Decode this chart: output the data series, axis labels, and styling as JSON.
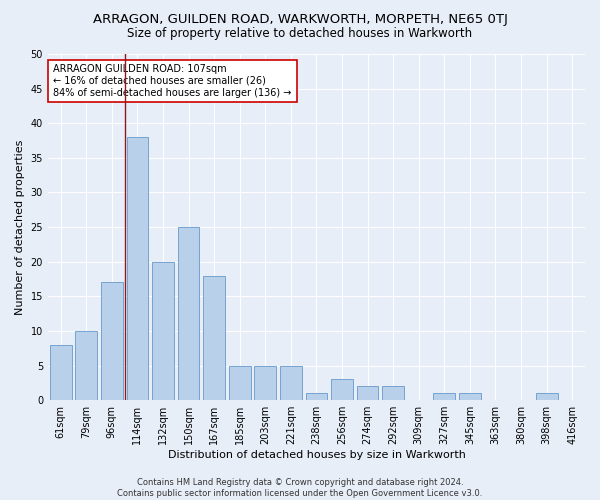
{
  "title": "ARRAGON, GUILDEN ROAD, WARKWORTH, MORPETH, NE65 0TJ",
  "subtitle": "Size of property relative to detached houses in Warkworth",
  "xlabel": "Distribution of detached houses by size in Warkworth",
  "ylabel": "Number of detached properties",
  "categories": [
    "61sqm",
    "79sqm",
    "96sqm",
    "114sqm",
    "132sqm",
    "150sqm",
    "167sqm",
    "185sqm",
    "203sqm",
    "221sqm",
    "238sqm",
    "256sqm",
    "274sqm",
    "292sqm",
    "309sqm",
    "327sqm",
    "345sqm",
    "363sqm",
    "380sqm",
    "398sqm",
    "416sqm"
  ],
  "values": [
    8,
    10,
    17,
    38,
    20,
    25,
    18,
    5,
    5,
    5,
    1,
    3,
    2,
    2,
    0,
    1,
    1,
    0,
    0,
    1,
    0
  ],
  "bar_color": "#b8d0ea",
  "bar_edge_color": "#6699cc",
  "vline_x_index": 2.5,
  "vline_color": "#8b1a1a",
  "annotation_text": "ARRAGON GUILDEN ROAD: 107sqm\n← 16% of detached houses are smaller (26)\n84% of semi-detached houses are larger (136) →",
  "annotation_box_color": "#ffffff",
  "annotation_box_edge_color": "#cc0000",
  "ylim": [
    0,
    50
  ],
  "yticks": [
    0,
    5,
    10,
    15,
    20,
    25,
    30,
    35,
    40,
    45,
    50
  ],
  "footer_line1": "Contains HM Land Registry data © Crown copyright and database right 2024.",
  "footer_line2": "Contains public sector information licensed under the Open Government Licence v3.0.",
  "bg_color": "#e8eef8",
  "plot_bg_color": "#e8eef8",
  "title_fontsize": 9.5,
  "subtitle_fontsize": 8.5,
  "ylabel_fontsize": 8,
  "xlabel_fontsize": 8,
  "tick_fontsize": 7,
  "annotation_fontsize": 7,
  "footer_fontsize": 6
}
